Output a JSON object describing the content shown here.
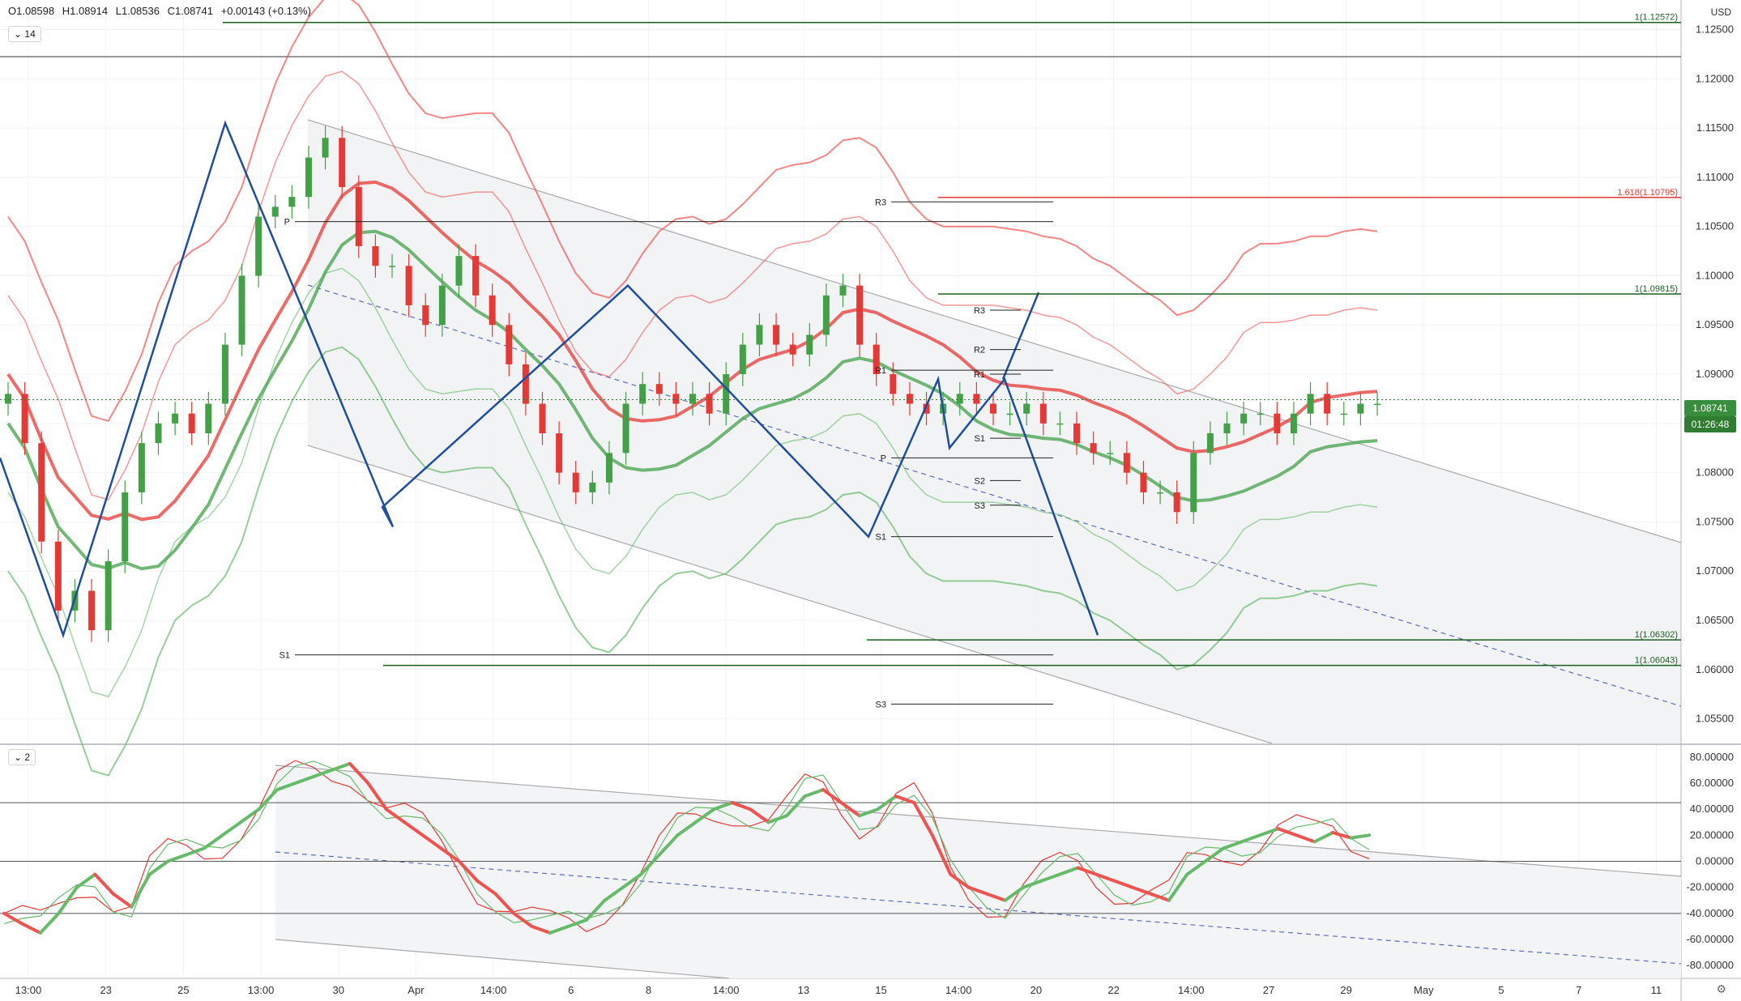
{
  "header": {
    "ohlc": {
      "open": "O1.08598",
      "high": "H1.08914",
      "low": "L1.08536",
      "close": "C1.08741",
      "change": "+0.00143 (+0.13%)"
    },
    "main_chip": "14",
    "osc_chip": "2",
    "currency": "USD",
    "last_price": "1.08741",
    "countdown": "01:26:48"
  },
  "chart_data": [
    {
      "type": "candlestick",
      "symbol_currency": "USD",
      "price_axis": {
        "min": 1.0525,
        "max": 1.128,
        "ticks": [
          "1.05500",
          "1.06000",
          "1.06500",
          "1.07000",
          "1.07500",
          "1.08000",
          "1.08500",
          "1.09000",
          "1.09500",
          "1.10000",
          "1.10500",
          "1.11000",
          "1.11500",
          "1.12000",
          "1.12500"
        ]
      },
      "time_axis": {
        "ticks": [
          "13:00",
          "23",
          "25",
          "13:00",
          "30",
          "Apr",
          "14:00",
          "6",
          "8",
          "14:00",
          "13",
          "15",
          "14:00",
          "20",
          "22",
          "14:00",
          "27",
          "29",
          "May",
          "5",
          "7",
          "11"
        ]
      },
      "close_path": [
        1.088,
        1.083,
        1.073,
        1.066,
        1.068,
        1.064,
        1.071,
        1.078,
        1.083,
        1.085,
        1.086,
        1.084,
        1.087,
        1.093,
        1.1,
        1.106,
        1.107,
        1.108,
        1.112,
        1.114,
        1.109,
        1.103,
        1.101,
        1.101,
        1.097,
        1.095,
        1.099,
        1.102,
        1.098,
        1.095,
        1.091,
        1.087,
        1.084,
        1.08,
        1.078,
        1.079,
        1.082,
        1.087,
        1.089,
        1.088,
        1.087,
        1.088,
        1.086,
        1.09,
        1.093,
        1.095,
        1.093,
        1.092,
        1.094,
        1.098,
        1.099,
        1.093,
        1.09,
        1.088,
        1.087,
        1.086,
        1.087,
        1.088,
        1.087,
        1.086,
        1.086,
        1.087,
        1.085,
        1.085,
        1.083,
        1.082,
        1.082,
        1.08,
        1.078,
        1.078,
        1.076,
        1.082,
        1.084,
        1.085,
        1.086,
        1.086,
        1.084,
        1.086,
        1.088,
        1.086,
        1.086,
        1.087,
        1.087
      ],
      "pivot_levels": [
        {
          "label": "P",
          "value": 1.1055
        },
        {
          "label": "S1",
          "value": 1.0615
        },
        {
          "label": "R3",
          "value": 1.1075
        },
        {
          "label": "R1",
          "value": 1.0904
        },
        {
          "label": "P",
          "value": 1.0815
        },
        {
          "label": "S1",
          "value": 1.0735
        },
        {
          "label": "S3",
          "value": 1.0565
        },
        {
          "label": "R3",
          "value": 1.0965
        },
        {
          "label": "R2",
          "value": 1.0925
        },
        {
          "label": "R1",
          "value": 1.09
        },
        {
          "label": "S1",
          "value": 1.0835
        },
        {
          "label": "S2",
          "value": 1.0792
        },
        {
          "label": "S3",
          "value": 1.0767
        }
      ],
      "fib_levels": [
        {
          "label": "1(1.12572)",
          "value": 1.12572,
          "color": "#1b5e20"
        },
        {
          "label": "1.618(1.10795)",
          "value": 1.10795,
          "color": "#e53935"
        },
        {
          "label": "1(1.09815)",
          "value": 1.09815,
          "color": "#1b5e20"
        },
        {
          "label": "1(1.06302)",
          "value": 1.06302,
          "color": "#1b5e20"
        },
        {
          "label": "1(1.06043)",
          "value": 1.06043,
          "color": "#1b5e20"
        }
      ],
      "colors": {
        "up": "#43a047",
        "down": "#e53935",
        "zigzag": "#1f4e9e",
        "channel": "#9e9e9e",
        "price_tag": "#388e3c"
      }
    },
    {
      "type": "line",
      "name_chip": "2",
      "y_axis": {
        "min": -88,
        "max": 88,
        "ticks": [
          "80.00000",
          "60.00000",
          "40.00000",
          "20.00000",
          "0.00000",
          "-20.00000",
          "-40.00000",
          "-60.00000",
          "-80.00000"
        ]
      },
      "levels": [
        45,
        0,
        -40
      ],
      "main_series": [
        -40,
        -48,
        -55,
        -40,
        -20,
        -10,
        -25,
        -35,
        -10,
        0,
        5,
        10,
        20,
        30,
        40,
        55,
        60,
        65,
        70,
        75,
        60,
        40,
        30,
        20,
        10,
        0,
        -15,
        -25,
        -40,
        -50,
        -55,
        -50,
        -45,
        -30,
        -20,
        -10,
        5,
        20,
        30,
        40,
        45,
        40,
        30,
        35,
        50,
        55,
        45,
        35,
        40,
        50,
        45,
        20,
        -10,
        -20,
        -25,
        -30,
        -20,
        -15,
        -10,
        -5,
        -10,
        -15,
        -20,
        -25,
        -30,
        -10,
        0,
        10,
        15,
        20,
        25,
        20,
        15,
        22,
        18,
        20
      ],
      "colors": {
        "up": "#66bb6a",
        "down": "#ef5350",
        "fast": "#e53935",
        "slow": "#66bb6a"
      }
    }
  ]
}
